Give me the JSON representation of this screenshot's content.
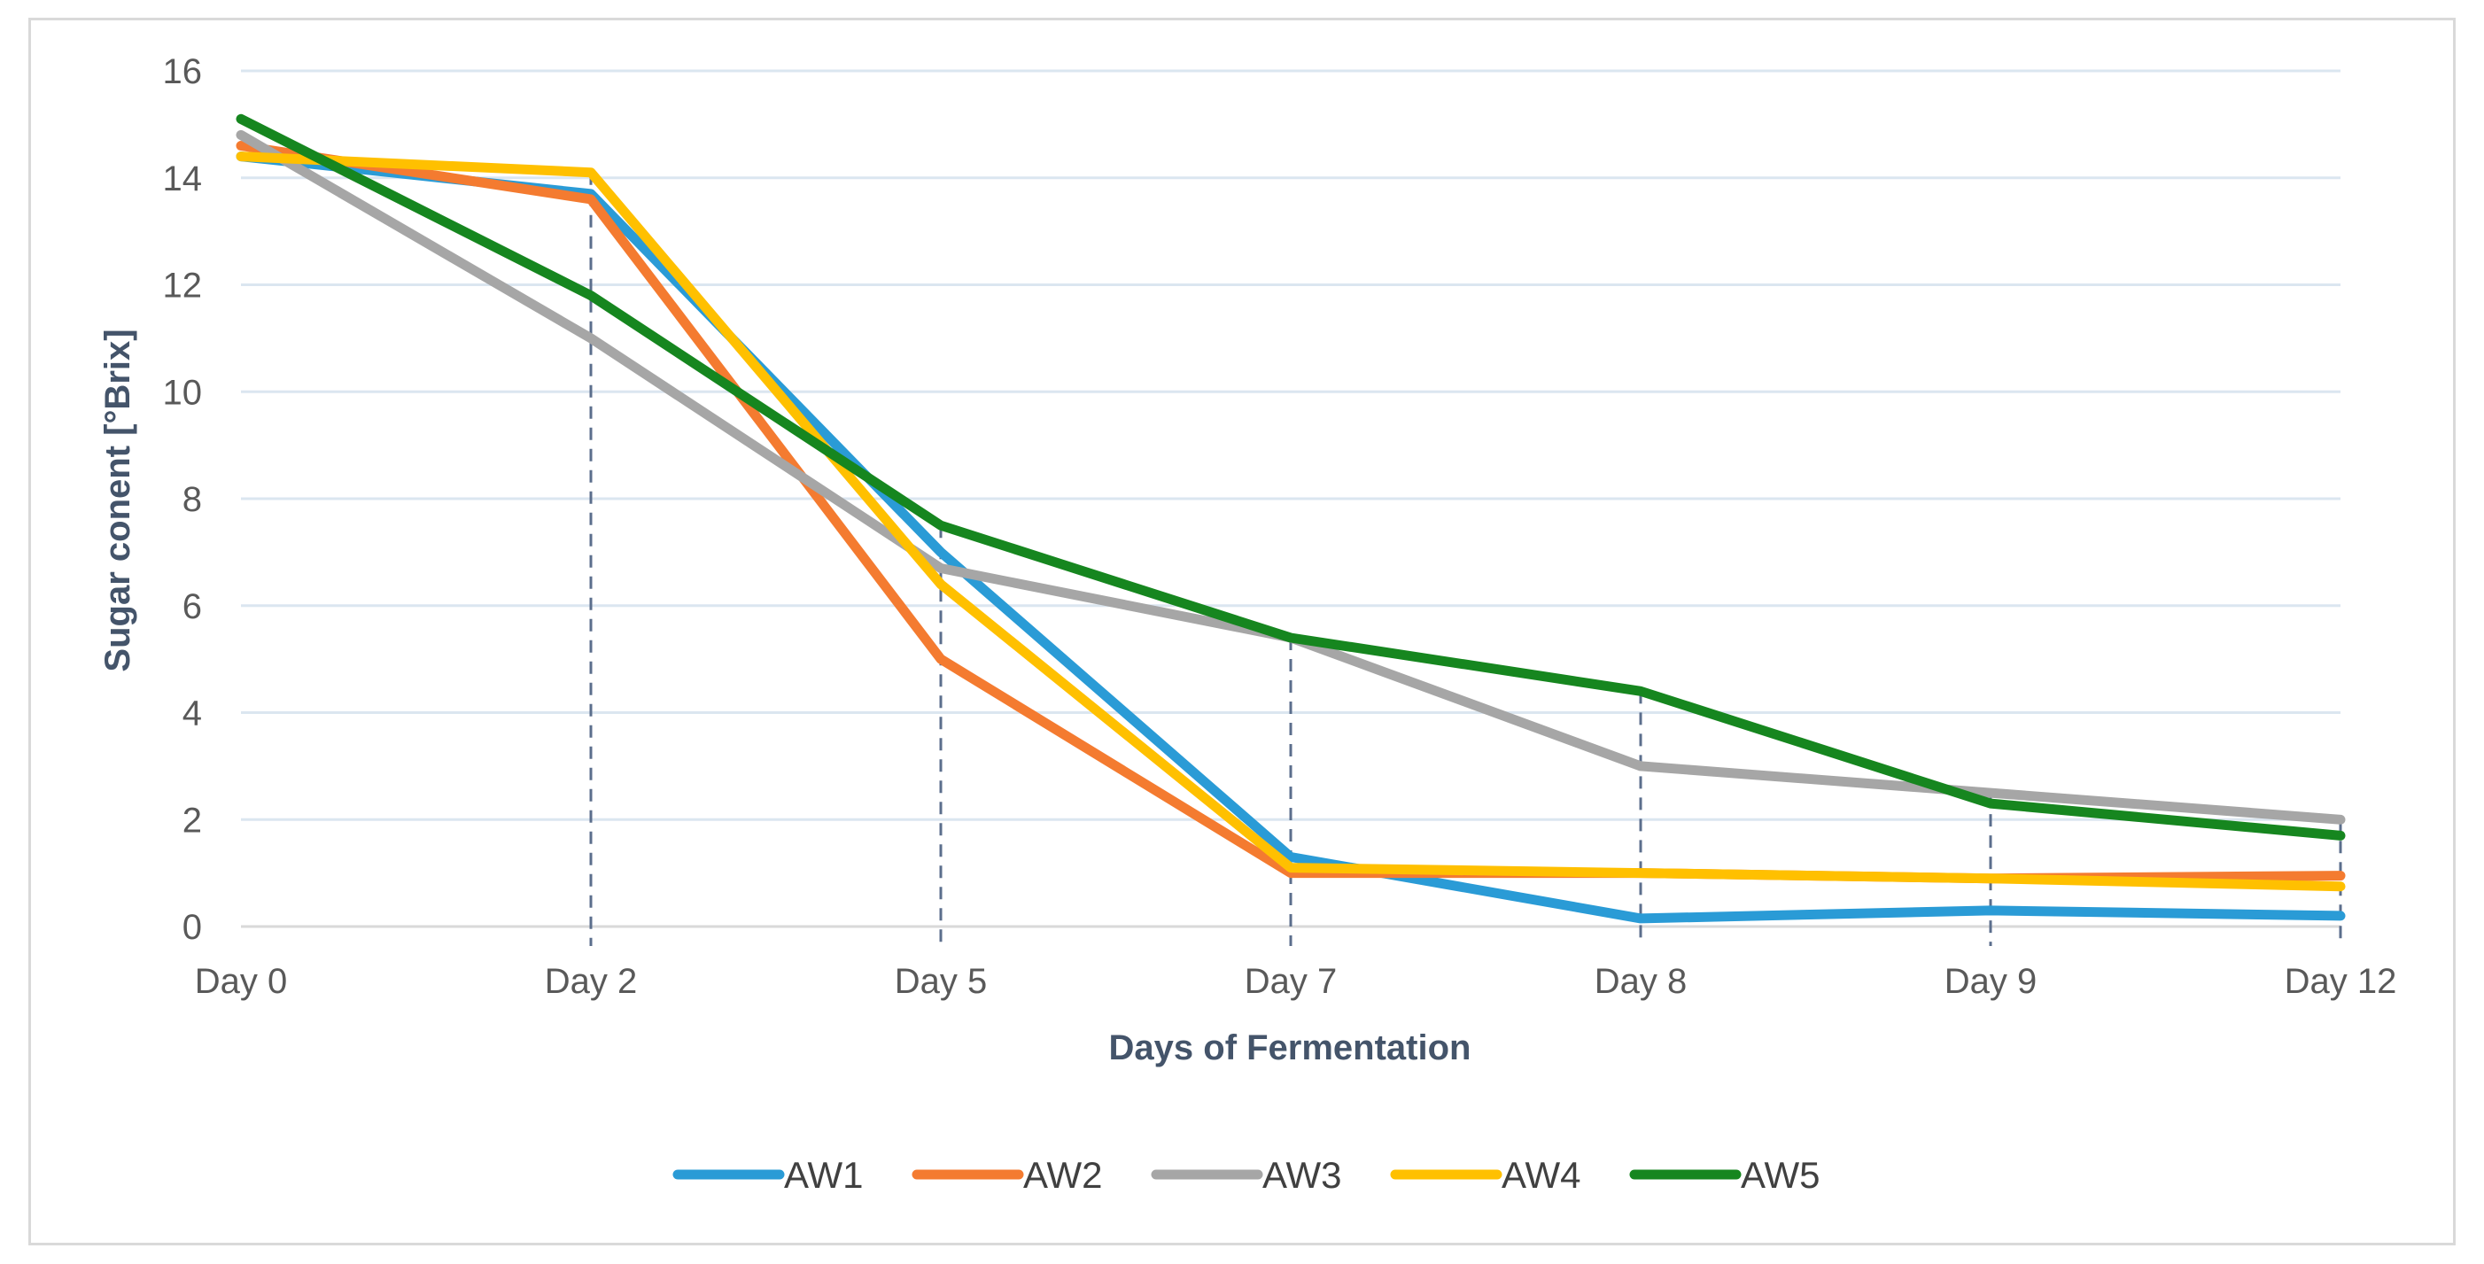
{
  "chart_data": {
    "type": "line",
    "title": "",
    "xlabel": "Days of Fermentation",
    "ylabel": "Sugar conent [°Brix]",
    "ylim": [
      0,
      16
    ],
    "yticks": [
      0,
      2,
      4,
      6,
      8,
      10,
      12,
      14,
      16
    ],
    "grid": true,
    "legend_position": "bottom",
    "categories": [
      "Day 0",
      "Day 2",
      "Day 5",
      "Day 7",
      "Day 8",
      "Day 9",
      "Day 12"
    ],
    "drop_lines": true,
    "series": [
      {
        "name": "AW1",
        "color": "#2a9bd6",
        "values": [
          14.4,
          13.7,
          7.0,
          1.3,
          0.15,
          0.3,
          0.2
        ]
      },
      {
        "name": "AW2",
        "color": "#f47b30",
        "values": [
          14.6,
          13.6,
          5.0,
          1.0,
          1.0,
          0.9,
          0.95
        ]
      },
      {
        "name": "AW3",
        "color": "#a6a6a6",
        "values": [
          14.8,
          11.0,
          6.7,
          5.4,
          3.0,
          2.5,
          2.0
        ]
      },
      {
        "name": "AW4",
        "color": "#ffc000",
        "values": [
          14.4,
          14.1,
          6.4,
          1.1,
          1.0,
          0.9,
          0.75
        ]
      },
      {
        "name": "AW5",
        "color": "#16861f",
        "values": [
          15.1,
          11.8,
          7.5,
          5.4,
          4.4,
          2.3,
          1.7
        ]
      }
    ]
  }
}
